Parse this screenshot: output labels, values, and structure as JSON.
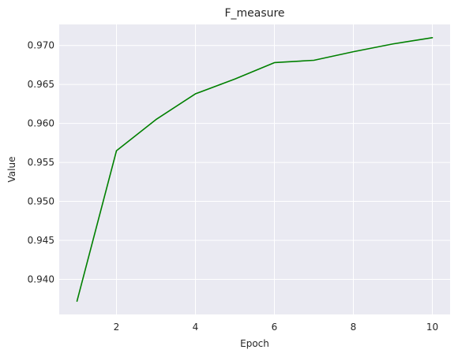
{
  "chart_data": {
    "type": "line",
    "title": "F_measure",
    "xlabel": "Epoch",
    "ylabel": "Value",
    "xlim": [
      0.55,
      10.45
    ],
    "ylim": [
      0.9355,
      0.9727
    ],
    "grid": true,
    "legend": "none",
    "x_ticks": [
      2,
      4,
      6,
      8,
      10
    ],
    "y_ticks": [
      0.94,
      0.945,
      0.95,
      0.955,
      0.96,
      0.965,
      0.97
    ],
    "x_tick_labels": [
      "2",
      "4",
      "6",
      "8",
      "10"
    ],
    "y_tick_labels": [
      "0.940",
      "0.945",
      "0.950",
      "0.955",
      "0.960",
      "0.965",
      "0.970"
    ],
    "series": [
      {
        "color": "#008000",
        "x": [
          1,
          2,
          3,
          4,
          5,
          6,
          7,
          8,
          9,
          10
        ],
        "y": [
          0.9372,
          0.9565,
          0.9605,
          0.9638,
          0.9657,
          0.9678,
          0.9681,
          0.9692,
          0.9702,
          0.971
        ]
      }
    ]
  },
  "colors": {
    "plot_background": "#eaeaf2",
    "grid": "#ffffff",
    "text": "#262626"
  }
}
